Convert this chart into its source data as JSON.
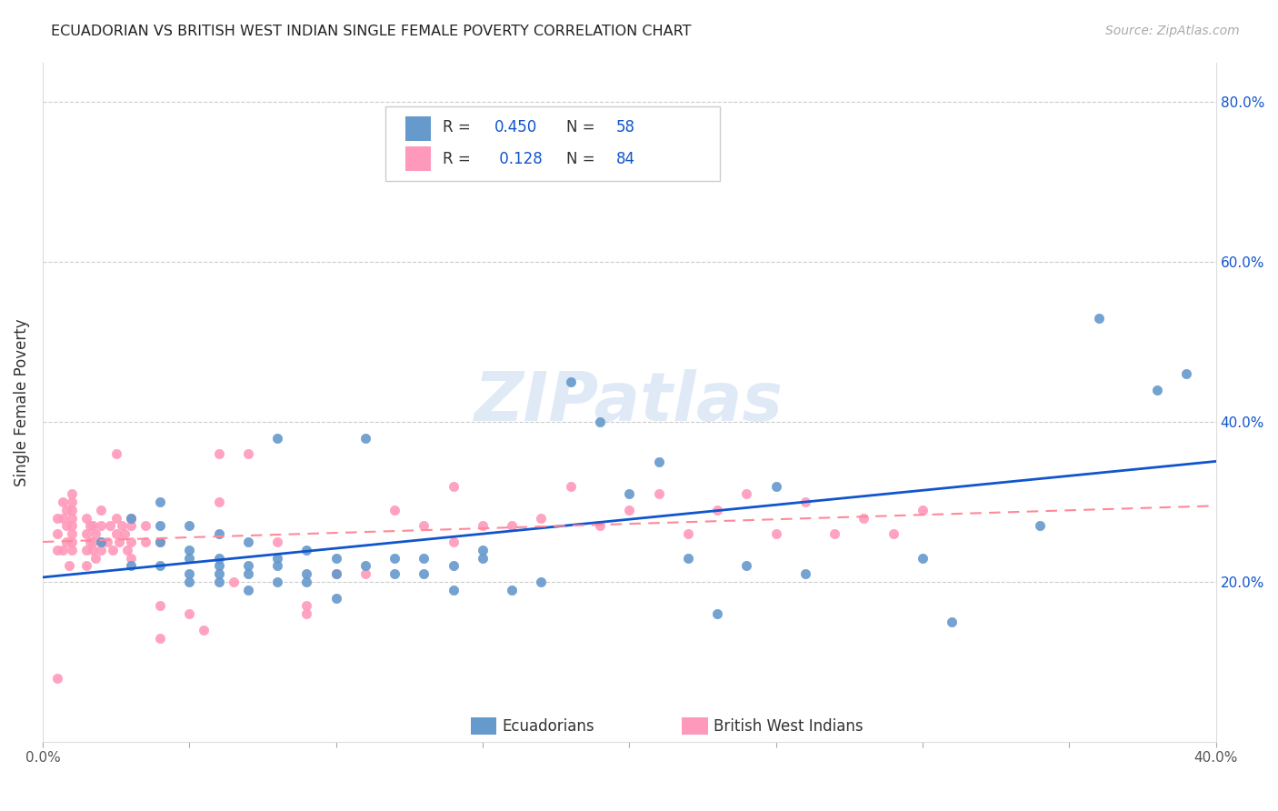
{
  "title": "ECUADORIAN VS BRITISH WEST INDIAN SINGLE FEMALE POVERTY CORRELATION CHART",
  "source": "Source: ZipAtlas.com",
  "ylabel": "Single Female Poverty",
  "xlim": [
    0.0,
    0.4
  ],
  "ylim": [
    0.0,
    0.85
  ],
  "blue_color": "#6699CC",
  "pink_color": "#FF99BB",
  "blue_line_color": "#1155CC",
  "pink_line_color": "#FF8899",
  "watermark": "ZIPatlas",
  "blue_scatter_x": [
    0.02,
    0.03,
    0.03,
    0.04,
    0.04,
    0.04,
    0.04,
    0.05,
    0.05,
    0.05,
    0.05,
    0.05,
    0.06,
    0.06,
    0.06,
    0.06,
    0.06,
    0.07,
    0.07,
    0.07,
    0.07,
    0.08,
    0.08,
    0.08,
    0.08,
    0.09,
    0.09,
    0.09,
    0.1,
    0.1,
    0.1,
    0.11,
    0.11,
    0.12,
    0.12,
    0.13,
    0.13,
    0.14,
    0.14,
    0.15,
    0.15,
    0.16,
    0.17,
    0.18,
    0.19,
    0.2,
    0.21,
    0.22,
    0.23,
    0.24,
    0.25,
    0.26,
    0.3,
    0.31,
    0.34,
    0.36,
    0.38,
    0.39
  ],
  "blue_scatter_y": [
    0.25,
    0.22,
    0.28,
    0.22,
    0.25,
    0.27,
    0.3,
    0.2,
    0.21,
    0.23,
    0.24,
    0.27,
    0.2,
    0.21,
    0.22,
    0.23,
    0.26,
    0.19,
    0.21,
    0.22,
    0.25,
    0.2,
    0.22,
    0.23,
    0.38,
    0.2,
    0.21,
    0.24,
    0.18,
    0.21,
    0.23,
    0.22,
    0.38,
    0.21,
    0.23,
    0.21,
    0.23,
    0.19,
    0.22,
    0.23,
    0.24,
    0.19,
    0.2,
    0.45,
    0.4,
    0.31,
    0.35,
    0.23,
    0.16,
    0.22,
    0.32,
    0.21,
    0.23,
    0.15,
    0.27,
    0.53,
    0.44,
    0.46
  ],
  "pink_scatter_x": [
    0.005,
    0.005,
    0.005,
    0.005,
    0.007,
    0.007,
    0.007,
    0.008,
    0.008,
    0.008,
    0.009,
    0.01,
    0.01,
    0.01,
    0.01,
    0.01,
    0.01,
    0.01,
    0.01,
    0.015,
    0.015,
    0.015,
    0.015,
    0.016,
    0.016,
    0.017,
    0.017,
    0.017,
    0.018,
    0.018,
    0.02,
    0.02,
    0.02,
    0.02,
    0.022,
    0.023,
    0.024,
    0.025,
    0.025,
    0.025,
    0.026,
    0.027,
    0.028,
    0.029,
    0.03,
    0.03,
    0.03,
    0.03,
    0.035,
    0.035,
    0.04,
    0.04,
    0.04,
    0.05,
    0.055,
    0.06,
    0.06,
    0.065,
    0.07,
    0.08,
    0.09,
    0.09,
    0.1,
    0.11,
    0.12,
    0.13,
    0.14,
    0.14,
    0.15,
    0.16,
    0.17,
    0.18,
    0.19,
    0.2,
    0.21,
    0.22,
    0.23,
    0.24,
    0.25,
    0.26,
    0.27,
    0.28,
    0.29,
    0.3
  ],
  "pink_scatter_y": [
    0.24,
    0.26,
    0.28,
    0.08,
    0.24,
    0.28,
    0.3,
    0.25,
    0.27,
    0.29,
    0.22,
    0.24,
    0.25,
    0.26,
    0.27,
    0.28,
    0.29,
    0.3,
    0.31,
    0.22,
    0.24,
    0.26,
    0.28,
    0.25,
    0.27,
    0.24,
    0.25,
    0.27,
    0.23,
    0.26,
    0.24,
    0.25,
    0.27,
    0.29,
    0.25,
    0.27,
    0.24,
    0.26,
    0.28,
    0.36,
    0.25,
    0.27,
    0.26,
    0.24,
    0.23,
    0.25,
    0.27,
    0.28,
    0.25,
    0.27,
    0.25,
    0.17,
    0.13,
    0.16,
    0.14,
    0.3,
    0.36,
    0.2,
    0.36,
    0.25,
    0.16,
    0.17,
    0.21,
    0.21,
    0.29,
    0.27,
    0.25,
    0.32,
    0.27,
    0.27,
    0.28,
    0.32,
    0.27,
    0.29,
    0.31,
    0.26,
    0.29,
    0.31,
    0.26,
    0.3,
    0.26,
    0.28,
    0.26,
    0.29
  ]
}
